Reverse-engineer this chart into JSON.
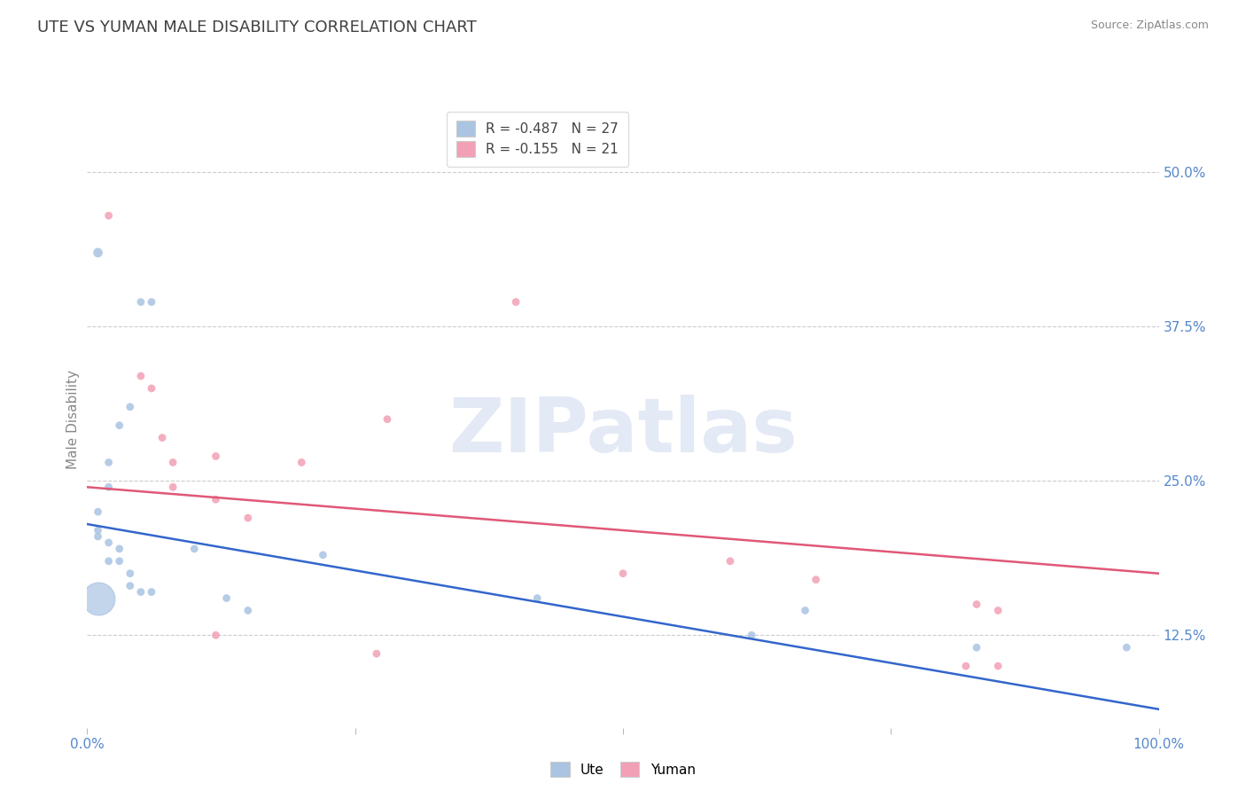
{
  "title": "UTE VS YUMAN MALE DISABILITY CORRELATION CHART",
  "source": "Source: ZipAtlas.com",
  "ylabel": "Male Disability",
  "watermark": "ZIPatlas",
  "ute_R": -0.487,
  "ute_N": 27,
  "yuman_R": -0.155,
  "yuman_N": 21,
  "ute_color": "#aac4e2",
  "yuman_color": "#f2a0b5",
  "ute_line_color": "#3366cc",
  "yuman_line_color": "#e05878",
  "background_color": "#ffffff",
  "grid_color": "#cccccc",
  "title_color": "#404040",
  "right_tick_color": "#5588cc",
  "ute_scatter": [
    [
      0.01,
      0.435
    ],
    [
      0.05,
      0.395
    ],
    [
      0.06,
      0.395
    ],
    [
      0.04,
      0.31
    ],
    [
      0.03,
      0.295
    ],
    [
      0.02,
      0.265
    ],
    [
      0.02,
      0.245
    ],
    [
      0.01,
      0.225
    ],
    [
      0.01,
      0.21
    ],
    [
      0.01,
      0.205
    ],
    [
      0.02,
      0.2
    ],
    [
      0.03,
      0.195
    ],
    [
      0.02,
      0.185
    ],
    [
      0.03,
      0.185
    ],
    [
      0.04,
      0.175
    ],
    [
      0.04,
      0.165
    ],
    [
      0.05,
      0.16
    ],
    [
      0.06,
      0.16
    ],
    [
      0.1,
      0.195
    ],
    [
      0.13,
      0.155
    ],
    [
      0.15,
      0.145
    ],
    [
      0.22,
      0.19
    ],
    [
      0.42,
      0.155
    ],
    [
      0.62,
      0.125
    ],
    [
      0.67,
      0.145
    ],
    [
      0.83,
      0.115
    ],
    [
      0.97,
      0.115
    ]
  ],
  "ute_sizes": [
    60,
    40,
    40,
    40,
    40,
    40,
    40,
    40,
    40,
    40,
    40,
    40,
    40,
    40,
    40,
    40,
    40,
    40,
    40,
    40,
    40,
    40,
    40,
    40,
    40,
    40,
    40
  ],
  "yuman_scatter": [
    [
      0.02,
      0.465
    ],
    [
      0.4,
      0.395
    ],
    [
      0.05,
      0.335
    ],
    [
      0.06,
      0.325
    ],
    [
      0.28,
      0.3
    ],
    [
      0.07,
      0.285
    ],
    [
      0.08,
      0.265
    ],
    [
      0.12,
      0.27
    ],
    [
      0.2,
      0.265
    ],
    [
      0.08,
      0.245
    ],
    [
      0.12,
      0.235
    ],
    [
      0.15,
      0.22
    ],
    [
      0.5,
      0.175
    ],
    [
      0.6,
      0.185
    ],
    [
      0.68,
      0.17
    ],
    [
      0.83,
      0.15
    ],
    [
      0.85,
      0.145
    ],
    [
      0.12,
      0.125
    ],
    [
      0.27,
      0.11
    ],
    [
      0.82,
      0.1
    ],
    [
      0.85,
      0.1
    ]
  ],
  "yuman_sizes": [
    40,
    40,
    40,
    40,
    40,
    40,
    40,
    40,
    40,
    40,
    40,
    40,
    40,
    40,
    40,
    40,
    40,
    40,
    40,
    40,
    40
  ],
  "xlim": [
    0.0,
    1.0
  ],
  "ylim": [
    0.05,
    0.55
  ],
  "yticks": [
    0.125,
    0.25,
    0.375,
    0.5
  ],
  "ytick_labels": [
    "12.5%",
    "25.0%",
    "37.5%",
    "50.0%"
  ],
  "xticks": [
    0.0,
    0.25,
    0.5,
    0.75,
    1.0
  ],
  "xtick_labels": [
    "0.0%",
    "",
    "",
    "",
    "100.0%"
  ],
  "ute_line": [
    [
      0.0,
      0.215
    ],
    [
      1.0,
      0.065
    ]
  ],
  "yuman_line": [
    [
      0.0,
      0.245
    ],
    [
      1.0,
      0.175
    ]
  ]
}
